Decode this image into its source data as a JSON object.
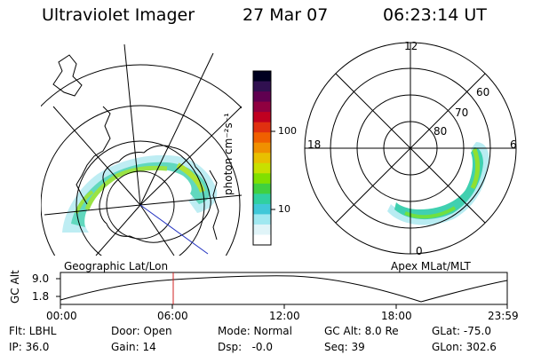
{
  "header": {
    "instrument": "Ultraviolet Imager",
    "date": "27 Mar 07",
    "time": "06:23:14 UT"
  },
  "left_panel": {
    "caption": "Geographic Lat/Lon"
  },
  "right_panel": {
    "caption": "Apex MLat/MLT",
    "mlt_labels": {
      "top": "12",
      "left": "18",
      "right": "6",
      "bottom": "0"
    },
    "mlat_labels": [
      "60",
      "70",
      "80"
    ]
  },
  "colorbar": {
    "unit": "photon cm⁻²s⁻¹",
    "ticks": [
      "100",
      "10"
    ],
    "colors": [
      "#000020",
      "#301050",
      "#600050",
      "#900040",
      "#c00020",
      "#e03010",
      "#f06000",
      "#f09000",
      "#e8c000",
      "#c8e000",
      "#80e000",
      "#40d040",
      "#30d0a0",
      "#40c8d8",
      "#a0e8f0",
      "#e0f4f8",
      "#ffffff"
    ]
  },
  "altitude_plot": {
    "ylabel": "GC Alt",
    "y_ticks": [
      "9.0",
      "1.8"
    ],
    "x_ticks": [
      "00:00",
      "06:00",
      "12:00",
      "18:00",
      "23:59"
    ],
    "current_time_color": "#d02020"
  },
  "status": {
    "row1": {
      "flt": "Flt: LBHL",
      "door": "Door: Open",
      "mode": "Mode: Normal",
      "gc_alt": "GC Alt: 8.0 Re",
      "glat": "GLat: -75.0"
    },
    "row2": {
      "ip": "IP: 36.0",
      "gain": "Gain: 14",
      "dsp": "Dsp:   -0.0",
      "seq": "Seq: 39",
      "glon": "GLon: 302.6"
    }
  }
}
